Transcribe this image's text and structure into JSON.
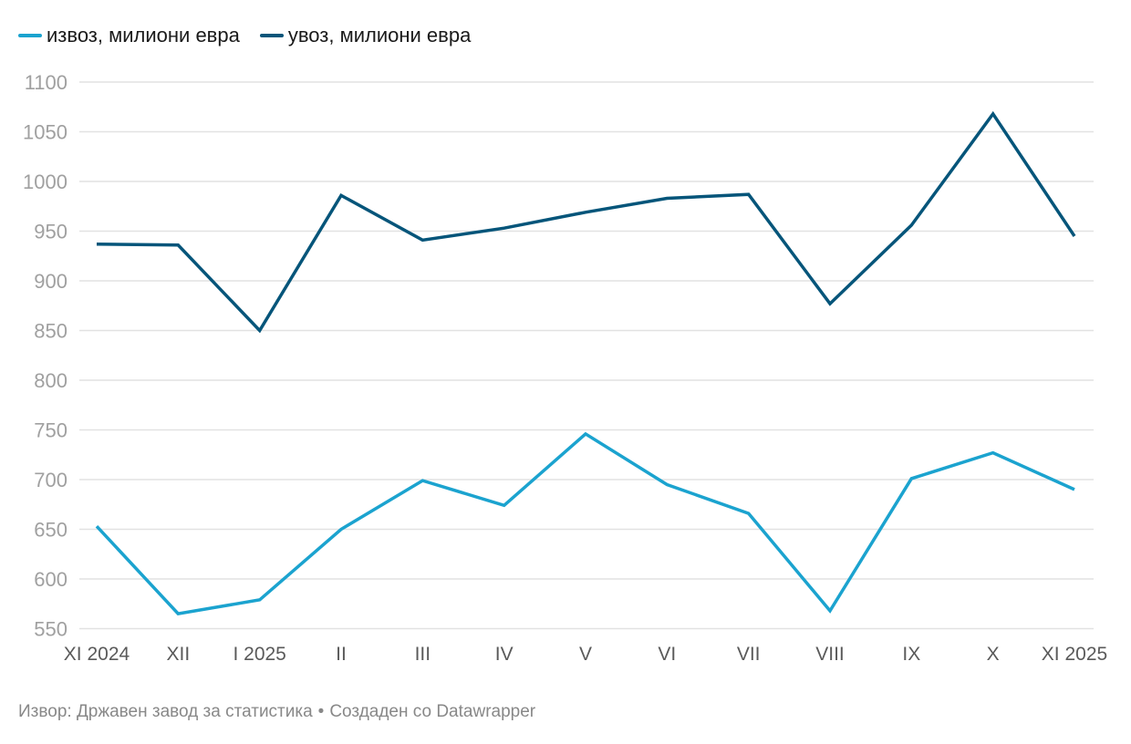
{
  "chart_data": {
    "type": "line",
    "title": "",
    "xlabel": "",
    "ylabel": "",
    "ylim": [
      550,
      1100
    ],
    "yticks": [
      550,
      600,
      650,
      700,
      750,
      800,
      850,
      900,
      950,
      1000,
      1050,
      1100
    ],
    "grid": true,
    "legend_position": "top-left",
    "categories": [
      "XI 2024",
      "XII",
      "I 2025",
      "II",
      "III",
      "IV",
      "V",
      "VI",
      "VII",
      "VIII",
      "IX",
      "X",
      "XI 2025"
    ],
    "series": [
      {
        "name": "извоз, милиони евра",
        "color": "#1ba3cf",
        "values": [
          653,
          565,
          579,
          650,
          699,
          674,
          746,
          695,
          666,
          568,
          701,
          727,
          690
        ]
      },
      {
        "name": "увоз, милиони евра",
        "color": "#05557a",
        "values": [
          937,
          936,
          850,
          986,
          941,
          953,
          969,
          983,
          987,
          877,
          956,
          1068,
          945
        ]
      }
    ]
  },
  "legend": {
    "items": [
      {
        "label": "извоз, милиони евра",
        "color": "#1ba3cf"
      },
      {
        "label": "увоз, милиони евра",
        "color": "#05557a"
      }
    ]
  },
  "footer": {
    "source": "Извор: Државен завод за статистика",
    "separator": "•",
    "credit": "Создаден со Datawrapper"
  }
}
